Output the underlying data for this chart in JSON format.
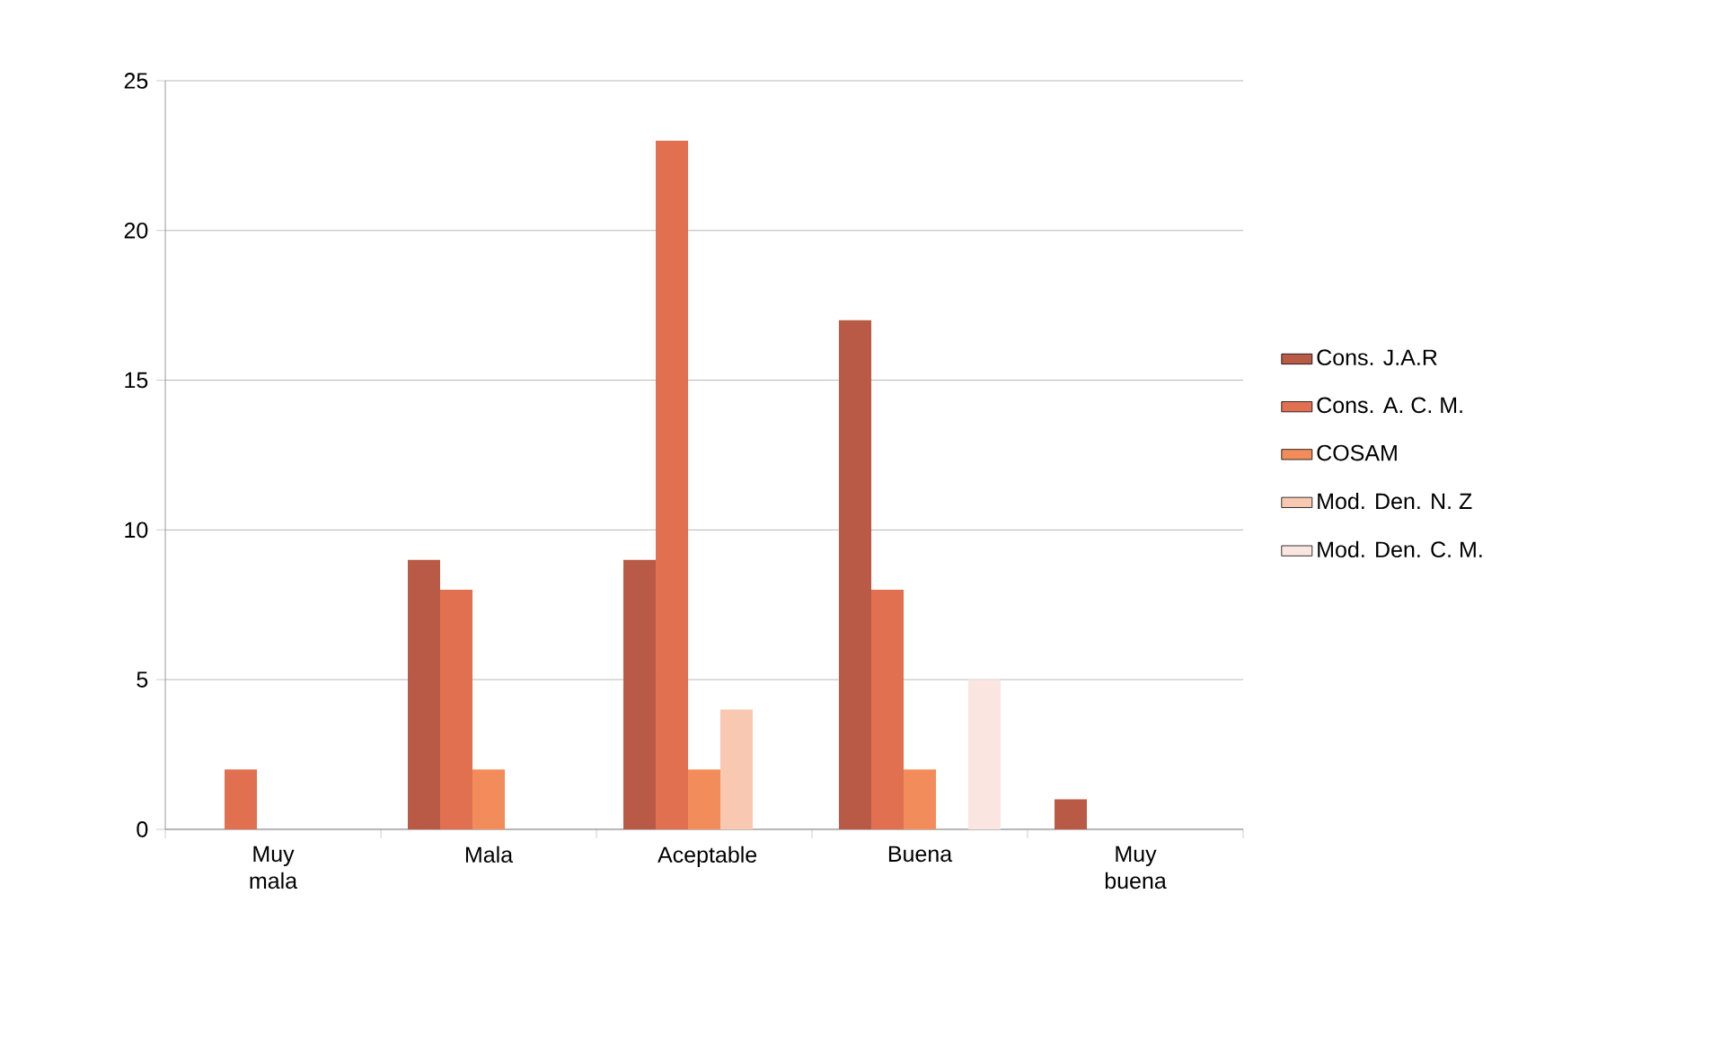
{
  "chart_data": {
    "type": "bar",
    "categories": [
      "Muy mala",
      "Mala",
      "Aceptable",
      "Buena",
      "Muy buena"
    ],
    "series": [
      {
        "name": "Cons. J.A.R",
        "color": "#b85a45",
        "values": [
          0,
          9,
          9,
          17,
          1
        ]
      },
      {
        "name": "Cons. A. C. M.",
        "color": "#e0704f",
        "values": [
          2,
          8,
          23,
          8,
          0
        ]
      },
      {
        "name": "COSAM",
        "color": "#f28c5a",
        "values": [
          0,
          2,
          2,
          2,
          0
        ]
      },
      {
        "name": "Mod. Den. N. Z",
        "color": "#f8c8b0",
        "values": [
          0,
          0,
          4,
          0,
          0
        ]
      },
      {
        "name": "Mod. Den. C. M.",
        "color": "#fbe5e0",
        "values": [
          0,
          0,
          0,
          5,
          0
        ]
      }
    ],
    "ylim": [
      0,
      25
    ],
    "yticks": [
      0,
      5,
      10,
      15,
      20,
      25
    ],
    "grid": "y",
    "legend": "right"
  }
}
